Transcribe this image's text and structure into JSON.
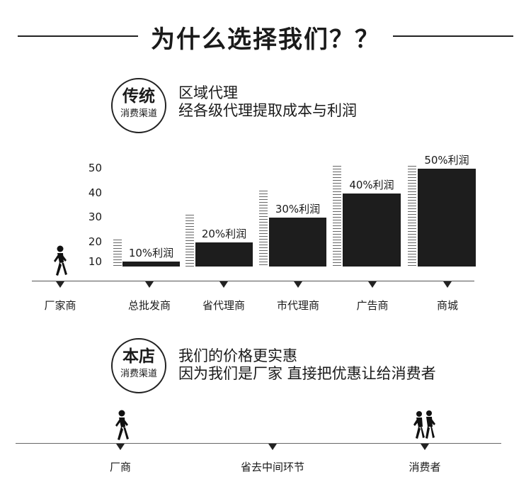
{
  "title": "为什么选择我们？？",
  "traditional": {
    "circle_big": "传统",
    "circle_small": "消费渠道",
    "desc_line1": "区域代理",
    "desc_line2": "经各级代理提取成本与利润"
  },
  "chart_data": {
    "type": "bar",
    "categories": [
      "厂家商",
      "总批发商",
      "省代理商",
      "市代理商",
      "广告商",
      "商城"
    ],
    "values": [
      null,
      10,
      20,
      30,
      40,
      50
    ],
    "data_labels": [
      "",
      "10%利润",
      "20%利润",
      "30%利润",
      "40%利润",
      "50%利润"
    ],
    "y_ticks": [
      "50",
      "40",
      "30",
      "20",
      "10"
    ],
    "ylim": [
      10,
      50
    ]
  },
  "ours": {
    "circle_big": "本店",
    "circle_small": "消费渠道",
    "desc_line1": "我们的价格更实惠",
    "desc_line2": "因为我们是厂家  直接把优惠让给消费者"
  },
  "timeline": {
    "labels": [
      "厂商",
      "省去中间环节",
      "消费者"
    ]
  },
  "icons": [
    "walking-person-icon",
    "walking-person-icon",
    "two-people-icon"
  ]
}
